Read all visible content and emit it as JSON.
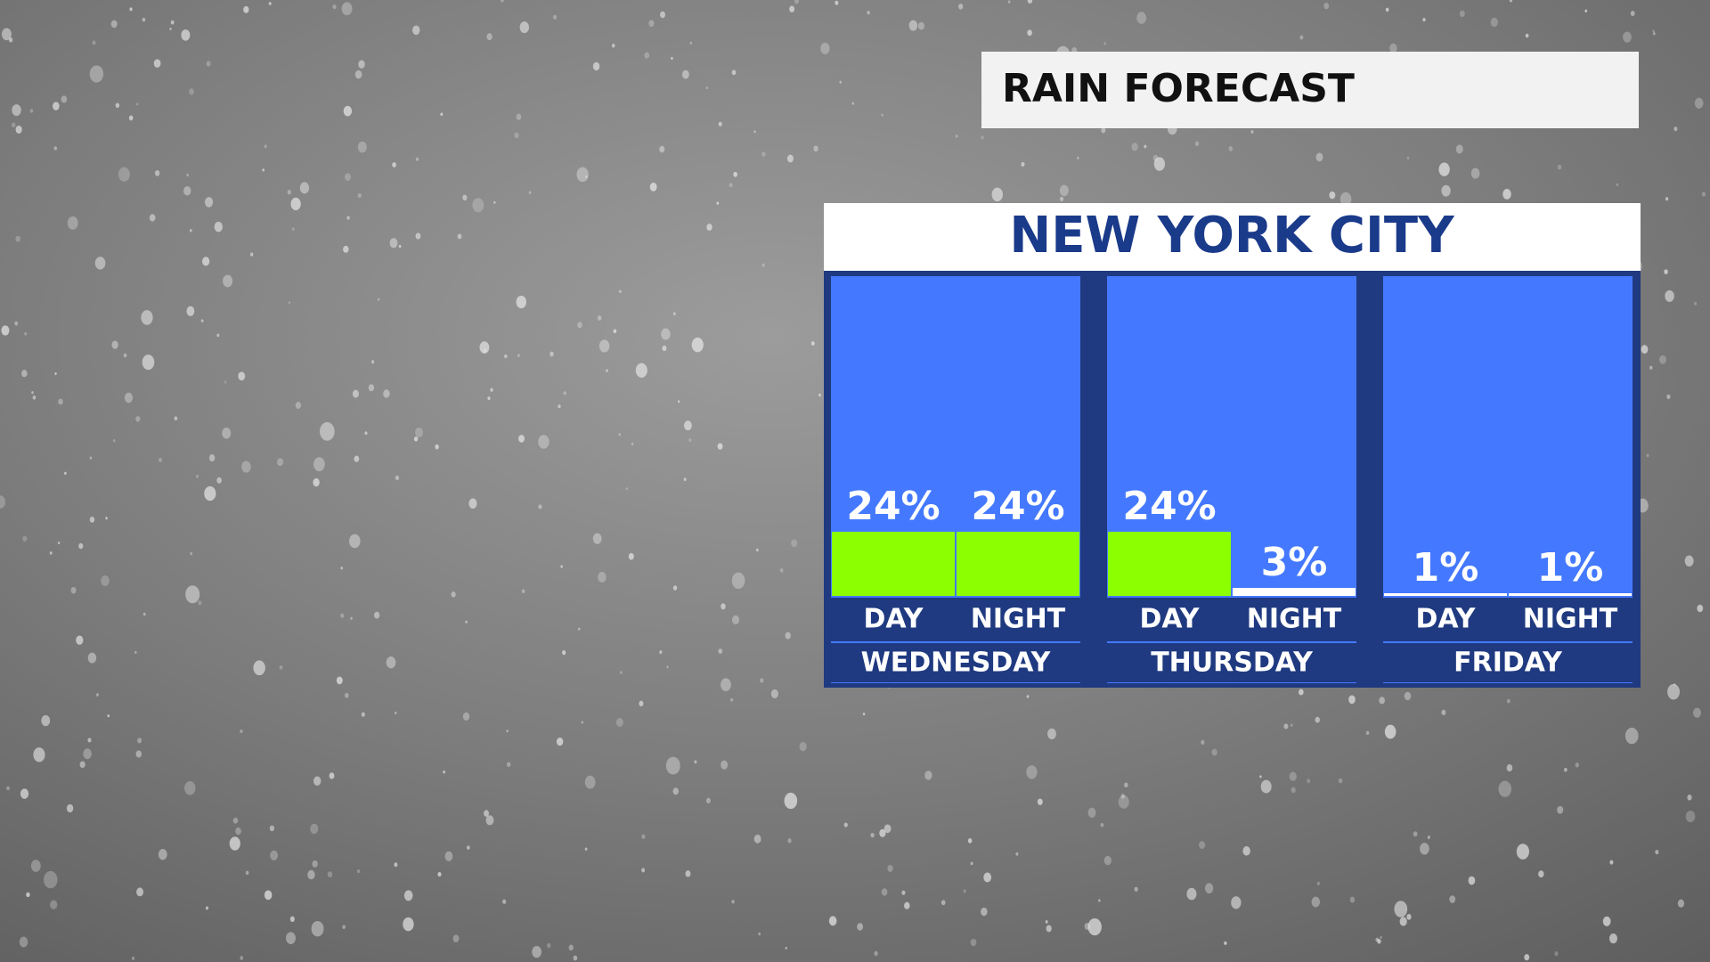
{
  "chart_data": {
    "type": "bar",
    "title": "RAIN FORECAST",
    "subtitle": "NEW YORK CITY",
    "groups": [
      "WEDNESDAY",
      "THURSDAY",
      "FRIDAY"
    ],
    "categories": [
      "DAY",
      "NIGHT",
      "DAY",
      "NIGHT",
      "DAY",
      "NIGHT"
    ],
    "values": [
      24,
      24,
      24,
      3,
      1,
      1
    ],
    "value_labels": [
      "24%",
      "24%",
      "24%",
      "3%",
      "1%",
      "1%"
    ],
    "colors": [
      "#8cff00",
      "#8cff00",
      "#8cff00",
      "#ffffff",
      "#ffffff",
      "#ffffff"
    ]
  }
}
